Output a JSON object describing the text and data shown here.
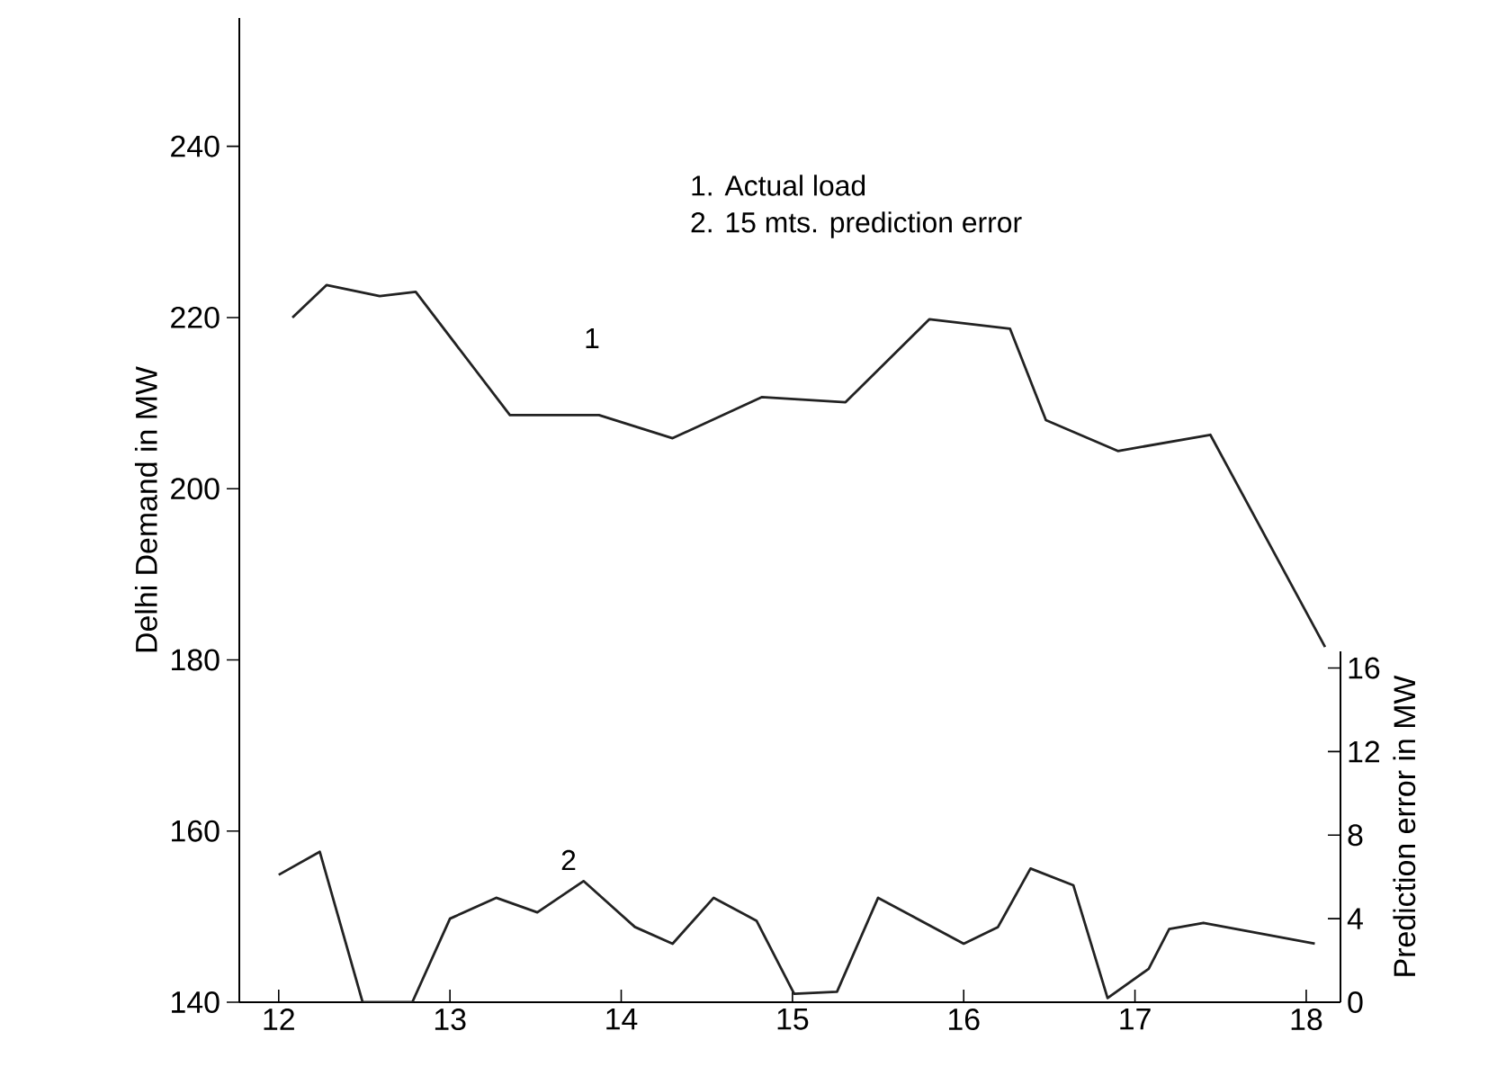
{
  "chart_data": {
    "type": "line",
    "ylabel": "Delhi Demand in MW",
    "y2label": "Prediction error in MW",
    "xlim": [
      11.77,
      18.2
    ],
    "xticks": [
      12,
      13,
      14,
      15,
      16,
      17,
      18
    ],
    "ylim": [
      140,
      255
    ],
    "yticks": [
      140,
      160,
      180,
      200,
      220,
      240
    ],
    "y2lim": [
      0,
      16.8
    ],
    "y2ticks": [
      0,
      4,
      8,
      12,
      16
    ],
    "grid": false,
    "marker": "none",
    "line_style": "solid",
    "series": [
      {
        "color": "#222222",
        "x": [
          12.08,
          12.28,
          12.59,
          12.8,
          13.35,
          13.87,
          14.3,
          14.82,
          15.31,
          15.8,
          16.27,
          16.48,
          16.9,
          17.44,
          18.11
        ],
        "values": [
          220,
          223.8,
          222.5,
          223,
          208.6,
          208.6,
          205.9,
          210.7,
          210.1,
          219.8,
          218.7,
          208,
          204.4,
          206.3,
          181.5
        ]
      },
      {
        "color": "#222222",
        "axis": "y2",
        "x": [
          12.0,
          12.24,
          12.49,
          12.78,
          13.0,
          13.27,
          13.51,
          13.78,
          14.08,
          14.3,
          14.54,
          14.79,
          15.01,
          15.26,
          15.5,
          16.0,
          16.2,
          16.39,
          16.64,
          16.84,
          17.08,
          17.2,
          17.4,
          18.05
        ],
        "values": [
          6.1,
          7.2,
          0,
          0,
          4.0,
          5.0,
          4.3,
          5.8,
          3.6,
          2.8,
          5.0,
          3.9,
          0.4,
          0.5,
          5.0,
          2.8,
          3.6,
          6.4,
          5.6,
          0.2,
          1.6,
          3.5,
          3.8,
          2.8
        ]
      }
    ],
    "annotations": [
      "1. Actual load",
      "2. 15 mts. prediction error",
      "1",
      "2"
    ]
  }
}
